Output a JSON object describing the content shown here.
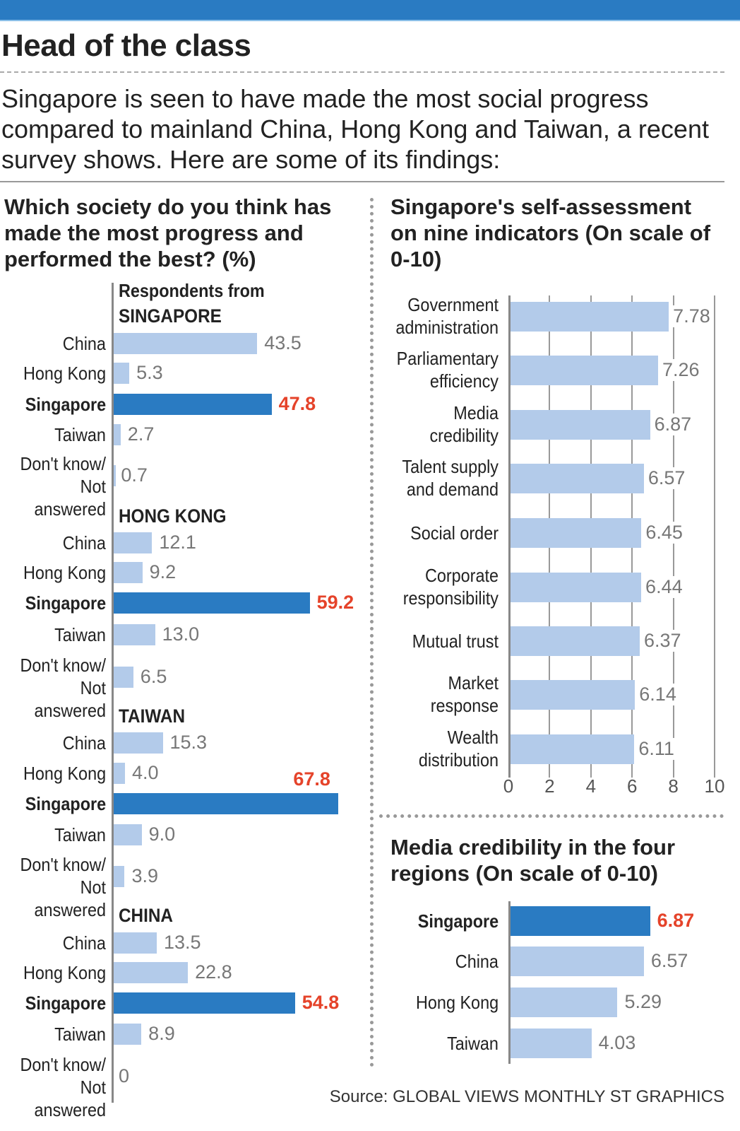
{
  "header": {
    "title": "Head of the class",
    "intro": "Singapore is seen to have made the most social progress compared to mainland China, Hong Kong and Taiwan, a recent survey shows. Here are some of its findings:"
  },
  "colors": {
    "brand": "#2a7bc2",
    "bar_light": "#b3cbea",
    "highlight_value": "#e5432a"
  },
  "source": "Source: GLOBAL VIEWS MONTHLY   ST GRAPHICS",
  "chart_data": [
    {
      "type": "bar",
      "orientation": "horizontal",
      "title": "Which society do you think has made the most progress and performed the best? (%)",
      "categories": [
        "China",
        "Hong Kong",
        "Singapore",
        "Taiwan",
        "Don't know/ Not answered"
      ],
      "highlight": "Singapore",
      "series": [
        {
          "name": "Respondents from SINGAPORE",
          "values": [
            43.5,
            5.3,
            47.8,
            2.7,
            0.7
          ],
          "labels": [
            "43.5",
            "5.3",
            "47.8",
            "2.7",
            "0.7"
          ]
        },
        {
          "name": "HONG KONG",
          "values": [
            12.1,
            9.2,
            59.2,
            13.0,
            6.5
          ],
          "labels": [
            "12.1",
            "9.2",
            "59.2",
            "13.0",
            "6.5"
          ]
        },
        {
          "name": "TAIWAN",
          "values": [
            15.3,
            4.0,
            67.8,
            9.0,
            3.9
          ],
          "labels": [
            "15.3",
            "4.0",
            "67.8",
            "9.0",
            "3.9"
          ]
        },
        {
          "name": "CHINA",
          "values": [
            13.5,
            22.8,
            54.8,
            8.9,
            0
          ],
          "labels": [
            "13.5",
            "22.8",
            "54.8",
            "8.9",
            "0"
          ]
        }
      ]
    },
    {
      "type": "bar",
      "orientation": "horizontal",
      "title": "Singapore's self-assessment on nine indicators (On scale of 0-10)",
      "categories": [
        "Government administration",
        "Parliamentary efficiency",
        "Media credibility",
        "Talent supply and demand",
        "Social order",
        "Corporate responsibility",
        "Mutual trust",
        "Market response",
        "Wealth distribution"
      ],
      "values": [
        7.78,
        7.26,
        6.87,
        6.57,
        6.45,
        6.44,
        6.37,
        6.14,
        6.11
      ],
      "labels": [
        "7.78",
        "7.26",
        "6.87",
        "6.57",
        "6.45",
        "6.44",
        "6.37",
        "6.14",
        "6.11"
      ],
      "xlim": [
        0,
        10
      ],
      "xticks": [
        "0",
        "2",
        "4",
        "6",
        "8",
        "10"
      ],
      "grid": true
    },
    {
      "type": "bar",
      "orientation": "horizontal",
      "title": "Media credibility in the four regions (On scale of 0-10)",
      "categories": [
        "Singapore",
        "China",
        "Hong Kong",
        "Taiwan"
      ],
      "values": [
        6.87,
        6.57,
        5.29,
        4.03
      ],
      "labels": [
        "6.87",
        "6.57",
        "5.29",
        "4.03"
      ],
      "highlight": "Singapore",
      "xlim": [
        0,
        10
      ]
    }
  ]
}
